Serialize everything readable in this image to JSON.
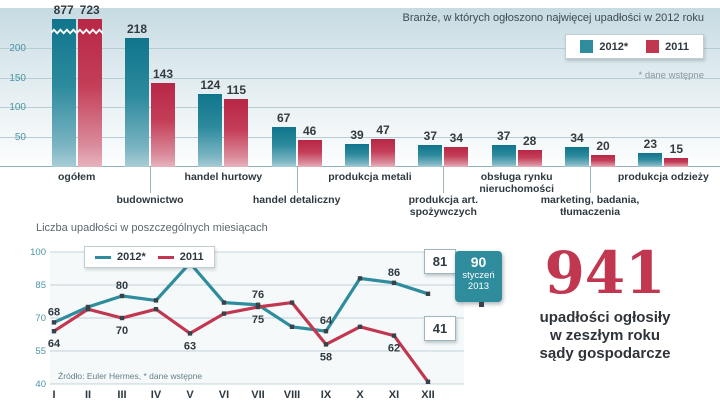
{
  "colors": {
    "teal": "#2E8C9D",
    "red": "#C23750",
    "dark": "#2E3940",
    "grid": "#C3D4DA",
    "tick": "#4B95A4"
  },
  "bar_chart": {
    "title": "Branże, w których ogłoszono najwięcej upadłości w 2012 roku",
    "note": "* dane wstępne",
    "legend": [
      {
        "label": "2012*",
        "color": "#2E8C9D"
      },
      {
        "label": "2011",
        "color": "#C23750"
      }
    ],
    "y_ticks": [
      200,
      150,
      100,
      50
    ],
    "categories": [
      {
        "lines": [
          "ogółem"
        ],
        "row": 0
      },
      {
        "lines": [
          "budownictwo"
        ],
        "row": 1
      },
      {
        "lines": [
          "handel hurtowy"
        ],
        "row": 0
      },
      {
        "lines": [
          "handel detaliczny"
        ],
        "row": 1
      },
      {
        "lines": [
          "produkcja metali"
        ],
        "row": 0
      },
      {
        "lines": [
          "produkcja art.",
          "spożywczych"
        ],
        "row": 1
      },
      {
        "lines": [
          "obsługa rynku",
          "nieruchomości"
        ],
        "row": 0
      },
      {
        "lines": [
          "marketing, badania,",
          "tłumaczenia"
        ],
        "row": 1
      },
      {
        "lines": [
          "produkcja odzieży"
        ],
        "row": 0
      }
    ]
  },
  "line_chart": {
    "title": "Liczba upadłości w poszczególnych miesiącach",
    "legend": [
      {
        "label": "2012*",
        "color": "#2E8C9D"
      },
      {
        "label": "2011",
        "color": "#C23750"
      }
    ],
    "source": "Źródło: Euler Hermes, * dane wstępne",
    "boxed_labels": {
      "teal": "81",
      "red": "41"
    },
    "callout": {
      "value": "90",
      "sub1": "styczeń",
      "sub2": "2013"
    }
  },
  "stat": {
    "value": "941",
    "lines": [
      "upadłości ogłosiły",
      "w zeszłym roku",
      "sądy gospodarcze"
    ]
  },
  "chart_data": [
    {
      "type": "bar",
      "title": "Branże, w których ogłoszono najwięcej upadłości w 2012 roku",
      "note": "* dane wstępne",
      "categories": [
        "ogółem",
        "budownictwo",
        "handel hurtowy",
        "handel detaliczny",
        "produkcja metali",
        "produkcja art. spożywczych",
        "obsługa rynku nieruchomości",
        "marketing, badania, tłumaczenia",
        "produkcja odzieży"
      ],
      "series": [
        {
          "name": "2012*",
          "color": "#2E8C9D",
          "values": [
            877,
            218,
            124,
            67,
            39,
            37,
            37,
            34,
            23
          ]
        },
        {
          "name": "2011",
          "color": "#C23750",
          "values": [
            723,
            143,
            115,
            46,
            47,
            34,
            28,
            20,
            15
          ]
        }
      ],
      "ylim": [
        0,
        230
      ],
      "y_ticks": [
        0,
        50,
        100,
        150,
        200
      ],
      "axis_break_on": "ogółem",
      "legend_position": "top-right",
      "grid": true
    },
    {
      "type": "line",
      "title": "Liczba upadłości w poszczególnych miesiącach",
      "x": [
        "I",
        "II",
        "III",
        "IV",
        "V",
        "VI",
        "VII",
        "VIII",
        "IX",
        "X",
        "XI",
        "XII"
      ],
      "series": [
        {
          "name": "2012*",
          "color": "#2E8C9D",
          "values": [
            68,
            75,
            80,
            78,
            95,
            77,
            76,
            66,
            64,
            88,
            86,
            81
          ],
          "labeled_points": {
            "0": "68",
            "2": "80",
            "4": "95",
            "6": "76",
            "8": "64",
            "10": "86",
            "11": "81"
          }
        },
        {
          "name": "2011",
          "color": "#C23750",
          "values": [
            64,
            74,
            70,
            74,
            63,
            72,
            75,
            77,
            58,
            66,
            62,
            41
          ],
          "labeled_points": {
            "0": "64",
            "2": "70",
            "4": "63",
            "6": "75",
            "8": "58",
            "10": "62",
            "11": "41"
          }
        }
      ],
      "ylim": [
        40,
        100
      ],
      "y_ticks": [
        100,
        85,
        70,
        55,
        40
      ],
      "annotation": {
        "value": 90,
        "label": "styczeń 2013"
      },
      "source": "Źródło: Euler Hermes, * dane wstępne",
      "legend_position": "top-left",
      "grid": true
    }
  ]
}
